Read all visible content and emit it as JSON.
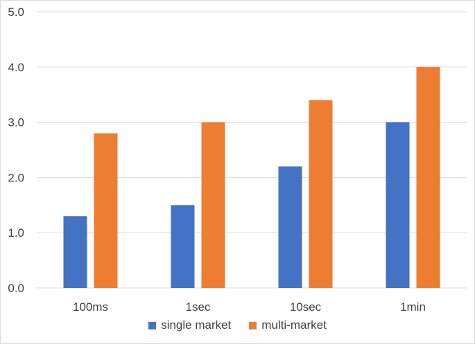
{
  "chart_data": {
    "type": "bar",
    "categories": [
      "100ms",
      "1sec",
      "10sec",
      "1min"
    ],
    "series": [
      {
        "name": "single market",
        "color": "#4472c4",
        "values": [
          1.3,
          1.5,
          2.2,
          3.0
        ]
      },
      {
        "name": "multi-market",
        "color": "#ed7d31",
        "values": [
          2.8,
          3.0,
          3.4,
          4.0
        ]
      }
    ],
    "yticks": [
      "0.0",
      "1.0",
      "2.0",
      "3.0",
      "4.0",
      "5.0"
    ],
    "ylim": [
      0,
      5
    ],
    "grid": true,
    "legend_position": "bottom",
    "gridline_color": "#d9d9d9"
  }
}
